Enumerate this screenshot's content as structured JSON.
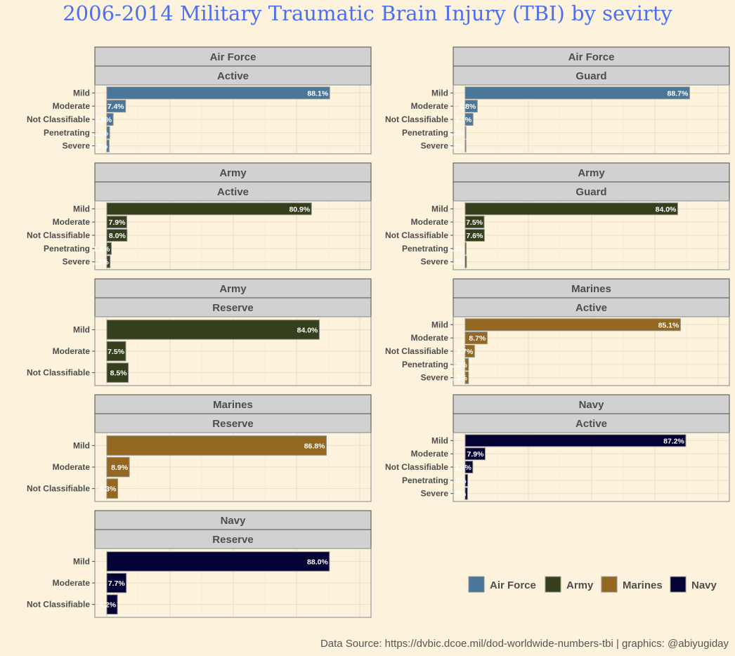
{
  "title": "2006-2014 Military Traumatic Brain Injury (TBI) by sevirty",
  "caption": "Data Source: https://dvbic.dcoe.mil/dod-worldwide-numbers-tbi | graphics: @abiyugiday",
  "legend": [
    {
      "name": "Air Force",
      "color": "#4a7699"
    },
    {
      "name": "Army",
      "color": "#363f1b"
    },
    {
      "name": "Marines",
      "color": "#956822"
    },
    {
      "name": "Navy",
      "color": "#040235"
    }
  ],
  "chart_data": {
    "type": "bar",
    "orientation": "horizontal",
    "legend_position": "bottom-right",
    "panels": [
      {
        "branch": "Air Force",
        "component": "Active",
        "categories": [
          "Mild",
          "Moderate",
          "Not Classifiable",
          "Penetrating",
          "Severe"
        ],
        "values": [
          88.1,
          7.4,
          2.5,
          1.1,
          0.9
        ],
        "labels": [
          "88.1%",
          "7.4%",
          "2.5%",
          "1.1%",
          "0.9%"
        ]
      },
      {
        "branch": "Air Force",
        "component": "Guard",
        "categories": [
          "Mild",
          "Moderate",
          "Not Classifiable",
          "Penetrating",
          "Severe"
        ],
        "values": [
          88.7,
          4.8,
          3.1,
          0.3,
          0.3
        ],
        "labels": [
          "88.7%",
          "4.8%",
          "3.1%",
          "0.3%",
          "0.3%"
        ]
      },
      {
        "branch": "Army",
        "component": "Active",
        "categories": [
          "Mild",
          "Moderate",
          "Not Classifiable",
          "Penetrating",
          "Severe"
        ],
        "values": [
          80.9,
          7.9,
          8.0,
          1.8,
          1.3
        ],
        "labels": [
          "80.9%",
          "7.9%",
          "8.0%",
          "1.8%",
          "1.3%"
        ]
      },
      {
        "branch": "Army",
        "component": "Guard",
        "categories": [
          "Mild",
          "Moderate",
          "Not Classifiable",
          "Penetrating",
          "Severe"
        ],
        "values": [
          84.0,
          7.5,
          7.6,
          0.4,
          0.5
        ],
        "labels": [
          "84.0%",
          "7.5%",
          "7.6%",
          "0.4%",
          "0.5%"
        ]
      },
      {
        "branch": "Army",
        "component": "Reserve",
        "categories": [
          "Mild",
          "Moderate",
          "Not Classifiable"
        ],
        "values": [
          84.0,
          7.5,
          8.5
        ],
        "labels": [
          "84.0%",
          "7.5%",
          "8.5%"
        ]
      },
      {
        "branch": "Marines",
        "component": "Active",
        "categories": [
          "Mild",
          "Moderate",
          "Not Classifiable",
          "Penetrating",
          "Severe"
        ],
        "values": [
          85.1,
          8.7,
          3.7,
          1.3,
          1.3
        ],
        "labels": [
          "85.1%",
          "8.7%",
          "3.7%",
          "1.3%",
          "1.3%"
        ]
      },
      {
        "branch": "Marines",
        "component": "Reserve",
        "categories": [
          "Mild",
          "Moderate",
          "Not Classifiable"
        ],
        "values": [
          86.8,
          8.9,
          4.3
        ],
        "labels": [
          "86.8%",
          "8.9%",
          "4.3%"
        ]
      },
      {
        "branch": "Navy",
        "component": "Active",
        "categories": [
          "Mild",
          "Moderate",
          "Not Classifiable",
          "Penetrating",
          "Severe"
        ],
        "values": [
          87.2,
          7.9,
          3.0,
          1.0,
          0.9
        ],
        "labels": [
          "87.2%",
          "7.9%",
          "3.0%",
          "1.0%",
          "0.9%"
        ]
      },
      {
        "branch": "Navy",
        "component": "Reserve",
        "categories": [
          "Mild",
          "Moderate",
          "Not Classifiable"
        ],
        "values": [
          88.0,
          7.7,
          4.2
        ],
        "labels": [
          "88.0%",
          "7.7%",
          "4.2%"
        ]
      }
    ]
  }
}
